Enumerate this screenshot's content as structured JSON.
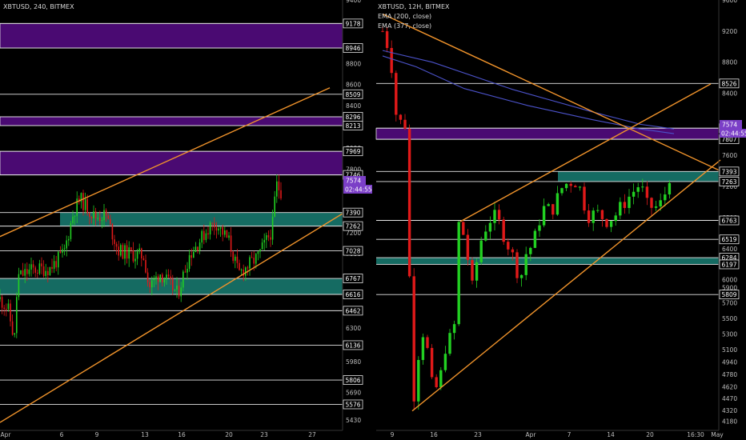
{
  "colors": {
    "background": "#000000",
    "up_candle": "#22d022",
    "down_candle": "#e01919",
    "supply_zone": "#4a0a72",
    "demand_zone": "#156b62",
    "trendline": "#f0932b",
    "ema200": "#4b52c9",
    "ema377": "#4b52c9",
    "level_line": "#e6e6e6",
    "price_badge": "#7b3fc7"
  },
  "chart_data": [
    {
      "type": "candlestick",
      "title": "XBTUSD, 240, BITMEX",
      "y_axis_ticks": [
        9400,
        9200,
        8800,
        8600,
        8400,
        8000,
        7800,
        7600,
        7200,
        7000,
        6600,
        6300,
        5980,
        5690,
        5430
      ],
      "x_axis_ticks": [
        "Apr",
        "6",
        "9",
        "13",
        "16",
        "20",
        "23",
        "27"
      ],
      "ylim": [
        5330,
        9400
      ],
      "level_labels": [
        9178,
        8946,
        8509,
        8296,
        8213,
        7969,
        7746,
        7390,
        7262,
        7028,
        6767,
        6616,
        6462,
        6136,
        5806,
        5576
      ],
      "supply_zones": [
        [
          8946,
          9178
        ],
        [
          8213,
          8296
        ],
        [
          7746,
          7969
        ]
      ],
      "demand_zones": [
        [
          7262,
          7390
        ],
        [
          6616,
          6767
        ]
      ],
      "last_price": 7574,
      "countdown": "02:44:55",
      "trendlines": [
        {
          "from": [
            0,
            7163
          ],
          "to": [
            412,
            8570
          ]
        },
        {
          "from": [
            0,
            5405
          ],
          "to": [
            428,
            7380
          ]
        }
      ],
      "price_path": [
        [
          0,
          6570
        ],
        [
          10,
          6480
        ],
        [
          18,
          6180
        ],
        [
          22,
          6780
        ],
        [
          40,
          6850
        ],
        [
          62,
          6860
        ],
        [
          80,
          7010
        ],
        [
          92,
          7400
        ],
        [
          100,
          7520
        ],
        [
          118,
          7350
        ],
        [
          132,
          7370
        ],
        [
          148,
          7030
        ],
        [
          168,
          6990
        ],
        [
          180,
          6980
        ],
        [
          186,
          6680
        ],
        [
          200,
          6820
        ],
        [
          222,
          6620
        ],
        [
          236,
          6980
        ],
        [
          262,
          7260
        ],
        [
          270,
          7290
        ],
        [
          286,
          7120
        ],
        [
          298,
          6810
        ],
        [
          322,
          6970
        ],
        [
          336,
          7170
        ],
        [
          340,
          7230
        ],
        [
          345,
          7660
        ],
        [
          352,
          7580
        ]
      ]
    },
    {
      "type": "candlestick",
      "title": "XBTUSD, 12H, BITMEX",
      "legend": [
        "EMA (200, close)",
        "EMA (377, close)"
      ],
      "y_axis_ticks": [
        9600,
        9200,
        8800,
        8400,
        8000,
        7600,
        7200,
        6800,
        6400,
        6000,
        5900,
        5700,
        5500,
        5300,
        5100,
        4940,
        4780,
        4620,
        4470,
        4320,
        4180
      ],
      "x_axis_ticks": [
        "9",
        "16",
        "23",
        "Apr",
        "7",
        "14",
        "20",
        "16:30",
        "May"
      ],
      "ylim": [
        4060,
        9600
      ],
      "level_labels": [
        8526,
        7950,
        7807,
        7393,
        7263,
        6763,
        6519,
        6284,
        6197,
        5809
      ],
      "supply_zones": [
        [
          7807,
          7950
        ]
      ],
      "demand_zones": [
        [
          7263,
          7393
        ],
        [
          6197,
          6284
        ]
      ],
      "last_price": 7574,
      "countdown": "02:44:55",
      "trendlines": [
        {
          "from": [
            478,
            9420
          ],
          "to": [
            900,
            7400
          ]
        },
        {
          "from": [
            515,
            4310
          ],
          "to": [
            900,
            7540
          ]
        },
        {
          "from": [
            575,
            6748
          ],
          "to": [
            888,
            8520
          ]
        }
      ],
      "ema200": [
        [
          478,
          8880
        ],
        [
          520,
          8740
        ],
        [
          580,
          8460
        ],
        [
          660,
          8240
        ],
        [
          740,
          8060
        ],
        [
          800,
          7940
        ],
        [
          842,
          7880
        ]
      ],
      "ema377": [
        [
          478,
          8950
        ],
        [
          540,
          8800
        ],
        [
          640,
          8450
        ],
        [
          740,
          8160
        ],
        [
          800,
          8000
        ],
        [
          842,
          7940
        ]
      ],
      "price_path": [
        [
          478,
          9200
        ],
        [
          484,
          9020
        ],
        [
          490,
          8700
        ],
        [
          496,
          8000
        ],
        [
          504,
          8050
        ],
        [
          508,
          7940
        ],
        [
          512,
          5820
        ],
        [
          518,
          4320
        ],
        [
          522,
          5000
        ],
        [
          530,
          5400
        ],
        [
          540,
          4620
        ],
        [
          548,
          4600
        ],
        [
          556,
          5120
        ],
        [
          562,
          5240
        ],
        [
          568,
          5420
        ],
        [
          572,
          6740
        ],
        [
          580,
          6560
        ],
        [
          590,
          5900
        ],
        [
          600,
          6480
        ],
        [
          610,
          6760
        ],
        [
          620,
          6820
        ],
        [
          630,
          6560
        ],
        [
          640,
          6320
        ],
        [
          650,
          5980
        ],
        [
          656,
          6320
        ],
        [
          666,
          6460
        ],
        [
          678,
          6920
        ],
        [
          690,
          6900
        ],
        [
          702,
          7180
        ],
        [
          710,
          7260
        ],
        [
          722,
          7260
        ],
        [
          734,
          6820
        ],
        [
          746,
          6860
        ],
        [
          758,
          6760
        ],
        [
          768,
          6820
        ],
        [
          776,
          6940
        ],
        [
          790,
          7120
        ],
        [
          800,
          7240
        ],
        [
          808,
          6960
        ],
        [
          818,
          6920
        ],
        [
          826,
          6980
        ],
        [
          832,
          7140
        ],
        [
          838,
          7400
        ],
        [
          842,
          7574
        ]
      ]
    }
  ]
}
